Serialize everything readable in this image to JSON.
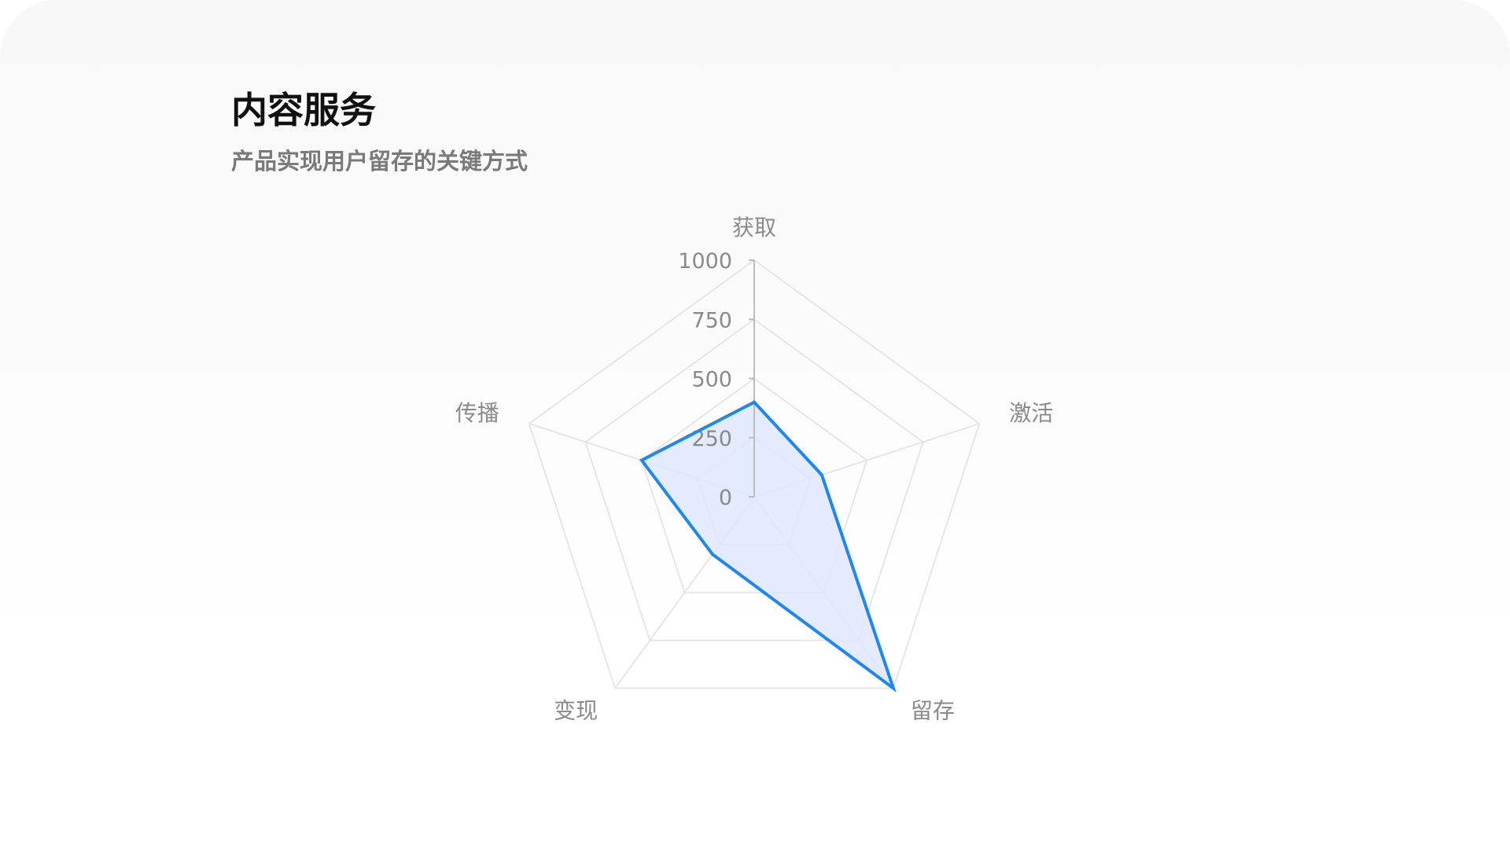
{
  "header": {
    "title": "内容服务",
    "subtitle": "产品实现用户留存的关键方式"
  },
  "chart_data": {
    "type": "radar",
    "title": "",
    "axes": [
      "获取",
      "激活",
      "留存",
      "变现",
      "传播"
    ],
    "range": [
      0,
      1000
    ],
    "ticks": [
      0,
      250,
      500,
      750,
      1000
    ],
    "tick_labels": [
      "0",
      "250",
      "500",
      "750",
      "1000"
    ],
    "grid": true,
    "series": [
      {
        "values": [
          400,
          300,
          1000,
          300,
          500
        ],
        "color": "#1e88f0",
        "fill": "#dfe8fb"
      }
    ],
    "grid_color": "#e6e6e6",
    "axis_color": "#bdbdbd"
  }
}
